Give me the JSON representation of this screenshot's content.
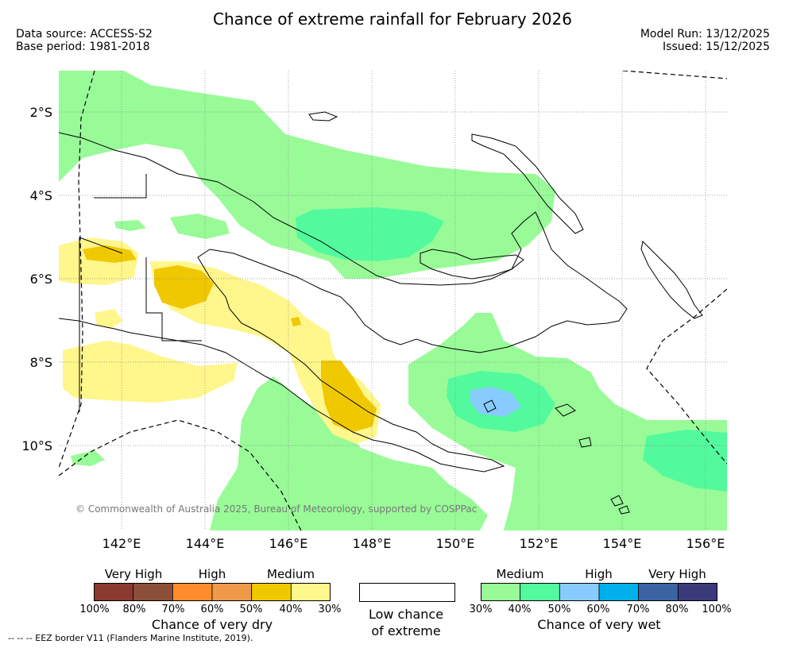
{
  "title": "Chance of extreme rainfall for February 2026",
  "meta": {
    "data_source": "Data source: ACCESS-S2",
    "base_period": "Base period: 1981-2018",
    "model_run": "Model Run: 13/12/2025",
    "issued": "Issued: 15/12/2025"
  },
  "map": {
    "lat_ticks": [
      "2°S",
      "4°S",
      "6°S",
      "8°S",
      "10°S"
    ],
    "lon_ticks": [
      "142°E",
      "144°E",
      "146°E",
      "148°E",
      "150°E",
      "152°E",
      "154°E",
      "156°E"
    ],
    "copyright": "© Commonwealth of Australia 2025, Bureau of Meteorology, supported by COSPPac"
  },
  "legend": {
    "dry": {
      "headers": [
        "Very High",
        "High",
        "Medium"
      ],
      "colors": [
        "#8b3a2f",
        "#8c4f3a",
        "#ff8c2a",
        "#ee9a4a",
        "#f0c800",
        "#fff68c"
      ],
      "percents": [
        "100%",
        "80%",
        "70%",
        "60%",
        "50%",
        "40%",
        "30%"
      ],
      "title": "Chance of very dry"
    },
    "low": {
      "line1": "Low chance",
      "line2": "of extreme"
    },
    "wet": {
      "headers": [
        "Medium",
        "High",
        "Very High"
      ],
      "colors": [
        "#98fb98",
        "#52fa9d",
        "#88ccff",
        "#00b0ea",
        "#3a64a2",
        "#3a3a7a"
      ],
      "percents": [
        "30%",
        "40%",
        "50%",
        "60%",
        "70%",
        "80%",
        "100%"
      ],
      "title": "Chance of very wet"
    }
  },
  "eez_note": "--  --  -- EEZ border V11 (Flanders Marine Institute, 2019)."
}
